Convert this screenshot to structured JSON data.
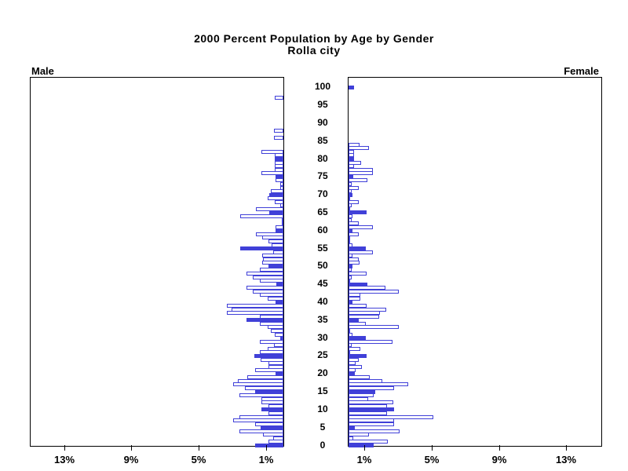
{
  "title": {
    "line1": "2000 Percent Population by Age by Gender",
    "line2": "Rolla city"
  },
  "side_labels": {
    "left": "Male",
    "right": "Female"
  },
  "colors": {
    "bar_blue": "#4040d8",
    "axis_black": "#000000",
    "background": "#ffffff"
  },
  "chart_data": {
    "type": "bar",
    "subtype": "population-pyramid",
    "title": "2000 Percent Population by Age by Gender",
    "subtitle": "Rolla city",
    "xlabel_left": "Male",
    "xlabel_right": "Female",
    "x_axis": {
      "unit": "percent",
      "tick_values": [
        1,
        5,
        9,
        13
      ],
      "tick_labels": [
        "1%",
        "5%",
        "9%",
        "13%"
      ],
      "max_percent": 14.9,
      "grid": false
    },
    "y_axis": {
      "unit": "age-years",
      "min": 0,
      "max": 100,
      "tick_step": 5,
      "tick_labels": [
        "0",
        "5",
        "10",
        "15",
        "20",
        "25",
        "30",
        "35",
        "40",
        "45",
        "50",
        "55",
        "60",
        "65",
        "70",
        "75",
        "80",
        "85",
        "90",
        "95",
        "100"
      ]
    },
    "fill_rule": "ages divisible by 5 are solid blue; other ages are white with blue outline",
    "ages": "0 through 100, one bar per single year of age",
    "series": [
      {
        "name": "Male",
        "values": [
          1.7,
          0.9,
          0.6,
          1.2,
          2.6,
          1.35,
          1.7,
          3.0,
          2.6,
          0.9,
          1.3,
          0.9,
          1.3,
          1.3,
          2.6,
          1.7,
          2.3,
          3.0,
          2.7,
          2.15,
          0.46,
          1.7,
          0.9,
          0.9,
          1.35,
          1.75,
          1.4,
          0.95,
          0.54,
          1.4,
          0.2,
          0.5,
          0.74,
          0.95,
          1.4,
          2.2,
          1.4,
          3.38,
          3.08,
          3.38,
          0.46,
          0.95,
          1.4,
          1.8,
          2.2,
          0.43,
          1.4,
          1.8,
          2.2,
          1.4,
          0.9,
          1.25,
          1.2,
          1.26,
          0.6,
          2.58,
          0.7,
          0.9,
          1.26,
          1.65,
          0.46,
          0.46,
          0.1,
          0.1,
          2.58,
          0.85,
          1.65,
          0.2,
          0.5,
          0.95,
          0.85,
          0.75,
          0.2,
          0.2,
          0.45,
          0.45,
          1.3,
          0.5,
          0.5,
          0.5,
          0.5,
          0.5,
          1.3,
          0,
          0,
          0,
          0.55,
          0,
          0.55,
          0,
          0,
          0,
          0,
          0,
          0,
          0,
          0,
          0.5,
          0,
          0,
          0
        ]
      },
      {
        "name": "Female",
        "values": [
          1.5,
          2.35,
          0.3,
          1.2,
          3.05,
          0.37,
          2.7,
          2.7,
          5.05,
          2.3,
          2.7,
          2.3,
          2.65,
          1.15,
          1.5,
          1.57,
          2.72,
          3.54,
          2.0,
          1.26,
          0.37,
          0.42,
          0.8,
          0.4,
          0.63,
          1.06,
          0.1,
          0.68,
          0.2,
          2.6,
          1.05,
          0.25,
          0.1,
          3.0,
          1.03,
          0.63,
          1.8,
          1.85,
          2.25,
          1.06,
          0.25,
          0.68,
          0.68,
          3.0,
          2.2,
          1.1,
          0.1,
          0.2,
          1.06,
          0.2,
          0.25,
          0.65,
          0.63,
          0.25,
          1.45,
          1.05,
          0.25,
          0.05,
          0.1,
          0.63,
          0.25,
          1.45,
          0.63,
          0.2,
          0.25,
          1.06,
          0.1,
          0.2,
          0.63,
          0.1,
          0.25,
          0.2,
          0.63,
          0.2,
          1.1,
          0.3,
          1.45,
          1.45,
          0.35,
          0.75,
          0.35,
          0.35,
          0.35,
          1.2,
          0.65,
          0,
          0,
          0,
          0,
          0,
          0,
          0,
          0,
          0,
          0,
          0,
          0,
          0,
          0,
          0,
          0.34
        ]
      }
    ]
  }
}
